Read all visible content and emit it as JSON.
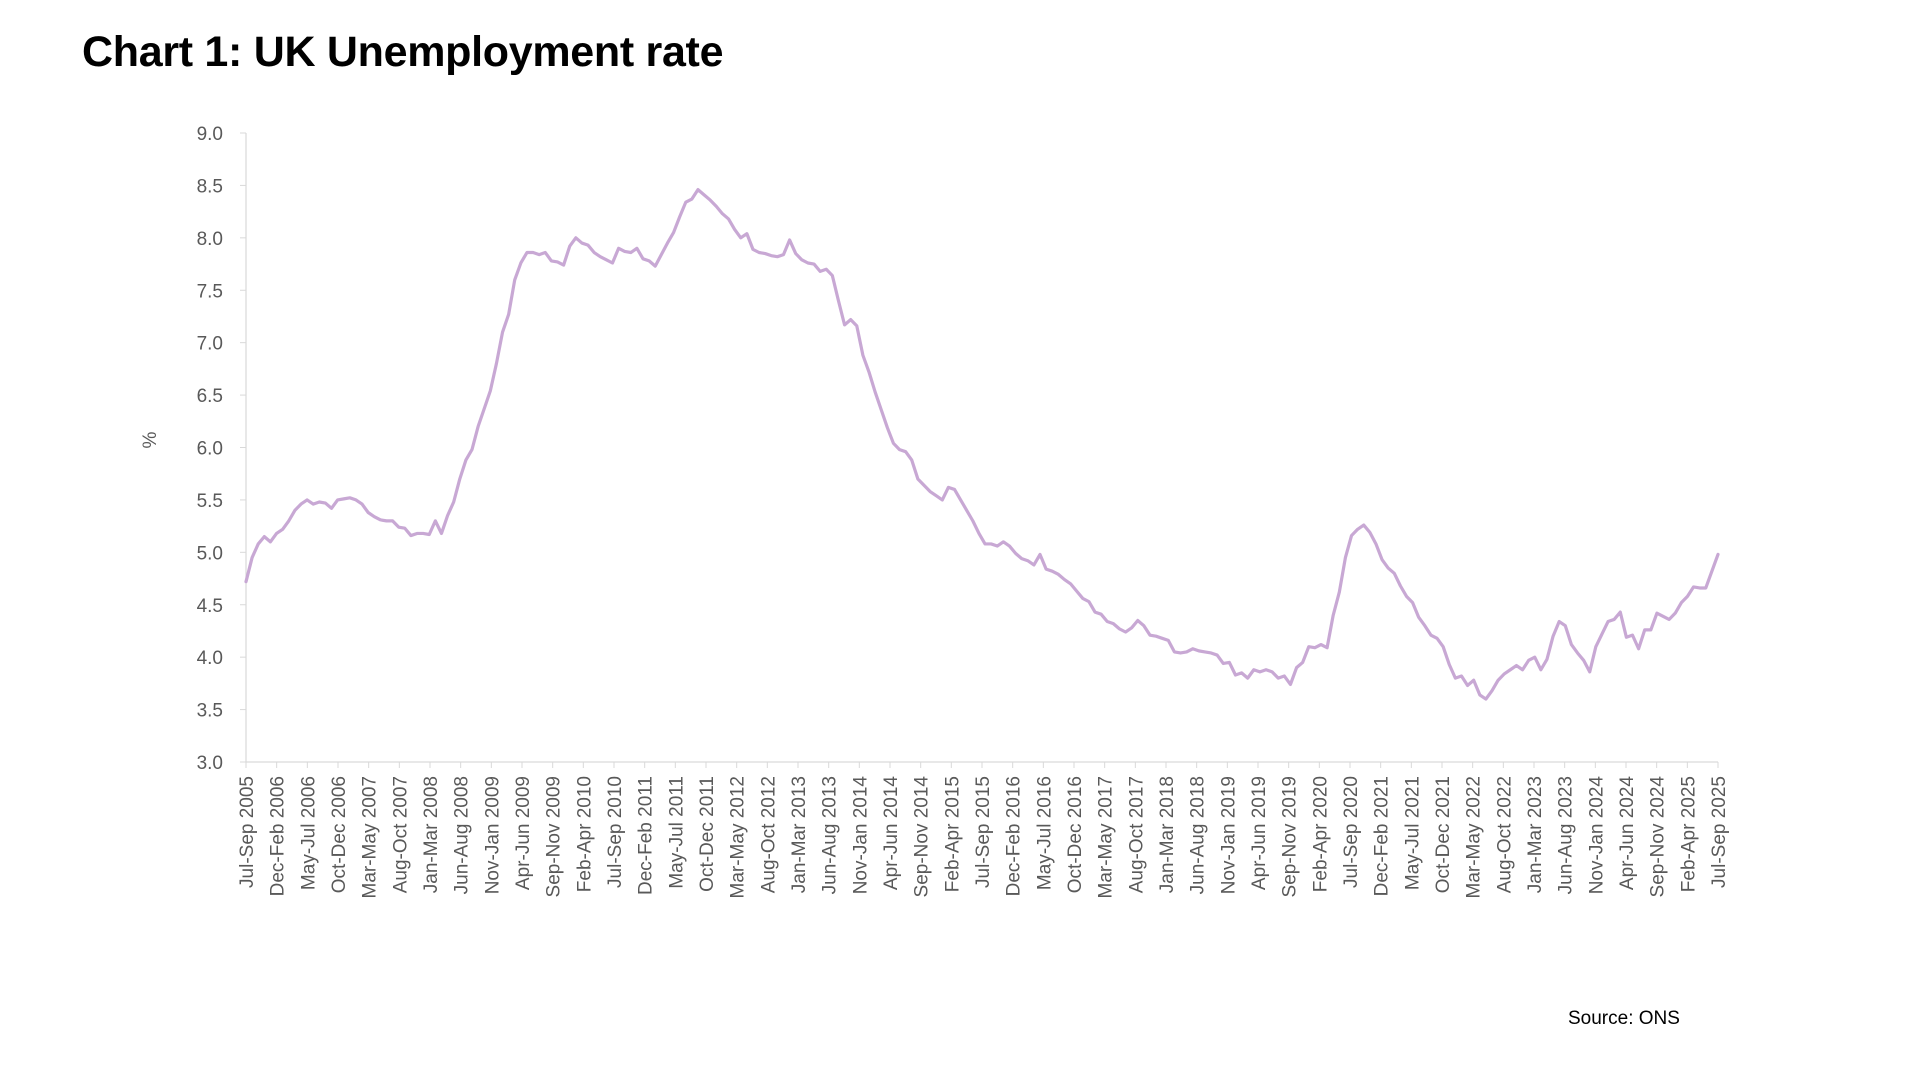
{
  "chart_data": {
    "type": "line",
    "title": "Chart 1: UK Unemployment rate",
    "ylabel": "%",
    "xlabel": "",
    "ylim": [
      3.0,
      9.0
    ],
    "yticks": [
      "3.0",
      "3.5",
      "4.0",
      "4.5",
      "5.0",
      "5.5",
      "6.0",
      "6.5",
      "7.0",
      "7.5",
      "8.0",
      "8.5",
      "9.0"
    ],
    "grid": false,
    "legend": "none",
    "x_tick_labels": [
      "Jul-Sep 2005",
      "Dec-Feb 2006",
      "May-Jul 2006",
      "Oct-Dec 2006",
      "Mar-May 2007",
      "Aug-Oct 2007",
      "Jan-Mar 2008",
      "Jun-Aug 2008",
      "Nov-Jan 2009",
      "Apr-Jun 2009",
      "Sep-Nov 2009",
      "Feb-Apr 2010",
      "Jul-Sep 2010",
      "Dec-Feb 2011",
      "May-Jul 2011",
      "Oct-Dec 2011",
      "Mar-May 2012",
      "Aug-Oct 2012",
      "Jan-Mar 2013",
      "Jun-Aug 2013",
      "Nov-Jan 2014",
      "Apr-Jun 2014",
      "Sep-Nov 2014",
      "Feb-Apr 2015",
      "Jul-Sep 2015",
      "Dec-Feb 2016",
      "May-Jul 2016",
      "Oct-Dec 2016",
      "Mar-May 2017",
      "Aug-Oct 2017",
      "Jan-Mar 2018",
      "Jun-Aug 2018",
      "Nov-Jan 2019",
      "Apr-Jun 2019",
      "Sep-Nov 2019",
      "Feb-Apr 2020",
      "Jul-Sep 2020",
      "Dec-Feb 2021",
      "May-Jul 2021",
      "Oct-Dec 2021",
      "Mar-May 2022",
      "Aug-Oct 2022",
      "Jan-Mar 2023",
      "Jun-Aug 2023",
      "Nov-Jan 2024",
      "Apr-Jun 2024",
      "Sep-Nov 2024",
      "Feb-Apr 2025",
      "Jul-Sep 2025"
    ],
    "series": [
      {
        "color": "#c8a8d4",
        "values": [
          4.72,
          4.95,
          5.08,
          5.15,
          5.1,
          5.18,
          5.22,
          5.3,
          5.4,
          5.46,
          5.5,
          5.46,
          5.48,
          5.47,
          5.42,
          5.5,
          5.51,
          5.52,
          5.5,
          5.46,
          5.38,
          5.34,
          5.31,
          5.3,
          5.3,
          5.24,
          5.23,
          5.16,
          5.18,
          5.18,
          5.17,
          5.3,
          5.18,
          5.35,
          5.48,
          5.7,
          5.88,
          5.98,
          6.2,
          6.37,
          6.54,
          6.8,
          7.1,
          7.27,
          7.6,
          7.76,
          7.86,
          7.86,
          7.84,
          7.86,
          7.78,
          7.77,
          7.74,
          7.92,
          8.0,
          7.95,
          7.93,
          7.86,
          7.82,
          7.79,
          7.76,
          7.9,
          7.87,
          7.86,
          7.9,
          7.8,
          7.78,
          7.73,
          7.84,
          7.95,
          8.05,
          8.2,
          8.34,
          8.37,
          8.46,
          8.41,
          8.36,
          8.3,
          8.23,
          8.18,
          8.08,
          8.0,
          8.04,
          7.89,
          7.86,
          7.85,
          7.83,
          7.82,
          7.84,
          7.98,
          7.85,
          7.79,
          7.76,
          7.75,
          7.68,
          7.7,
          7.64,
          7.4,
          7.17,
          7.22,
          7.16,
          6.88,
          6.72,
          6.53,
          6.36,
          6.19,
          6.04,
          5.98,
          5.96,
          5.88,
          5.7,
          5.64,
          5.58,
          5.54,
          5.5,
          5.62,
          5.6,
          5.5,
          5.4,
          5.3,
          5.18,
          5.08,
          5.08,
          5.06,
          5.1,
          5.06,
          4.99,
          4.94,
          4.92,
          4.88,
          4.98,
          4.84,
          4.82,
          4.79,
          4.74,
          4.7,
          4.63,
          4.56,
          4.53,
          4.43,
          4.41,
          4.34,
          4.32,
          4.27,
          4.24,
          4.28,
          4.35,
          4.3,
          4.21,
          4.2,
          4.18,
          4.16,
          4.05,
          4.04,
          4.05,
          4.08,
          4.06,
          4.05,
          4.04,
          4.02,
          3.94,
          3.95,
          3.83,
          3.85,
          3.8,
          3.88,
          3.86,
          3.88,
          3.86,
          3.8,
          3.82,
          3.74,
          3.9,
          3.95,
          4.1,
          4.09,
          4.12,
          4.09,
          4.4,
          4.62,
          4.95,
          5.16,
          5.22,
          5.26,
          5.19,
          5.08,
          4.93,
          4.85,
          4.8,
          4.68,
          4.58,
          4.52,
          4.38,
          4.3,
          4.21,
          4.18,
          4.1,
          3.93,
          3.8,
          3.82,
          3.73,
          3.78,
          3.64,
          3.6,
          3.68,
          3.78,
          3.84,
          3.88,
          3.92,
          3.88,
          3.97,
          4.0,
          3.88,
          3.98,
          4.2,
          4.34,
          4.3,
          4.12,
          4.04,
          3.97,
          3.86,
          4.1,
          4.22,
          4.34,
          4.36,
          4.43,
          4.19,
          4.21,
          4.08,
          4.26,
          4.26,
          4.42,
          4.39,
          4.36,
          4.42,
          4.52,
          4.58,
          4.67,
          4.66,
          4.66,
          4.82,
          4.98
        ]
      }
    ]
  },
  "source": "Source: ONS"
}
